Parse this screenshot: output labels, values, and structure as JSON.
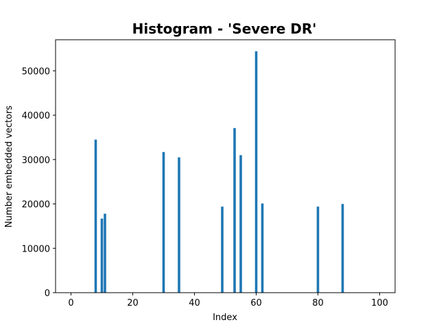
{
  "chart_data": {
    "type": "bar",
    "title": "Histogram - 'Severe DR'",
    "xlabel": "Index",
    "ylabel": "Number embedded vectors",
    "xlim": [
      -5,
      105
    ],
    "ylim": [
      0,
      57000
    ],
    "xticks": [
      0,
      20,
      40,
      60,
      80,
      100
    ],
    "yticks": [
      0,
      10000,
      20000,
      30000,
      40000,
      50000
    ],
    "grid": false,
    "bar_color": "#1f77b4",
    "x": [
      8,
      10,
      11,
      30,
      35,
      49,
      53,
      55,
      60,
      62,
      80,
      88
    ],
    "values": [
      34500,
      16700,
      17800,
      31700,
      30500,
      19400,
      37100,
      31000,
      54400,
      20100,
      19400,
      20000
    ]
  }
}
